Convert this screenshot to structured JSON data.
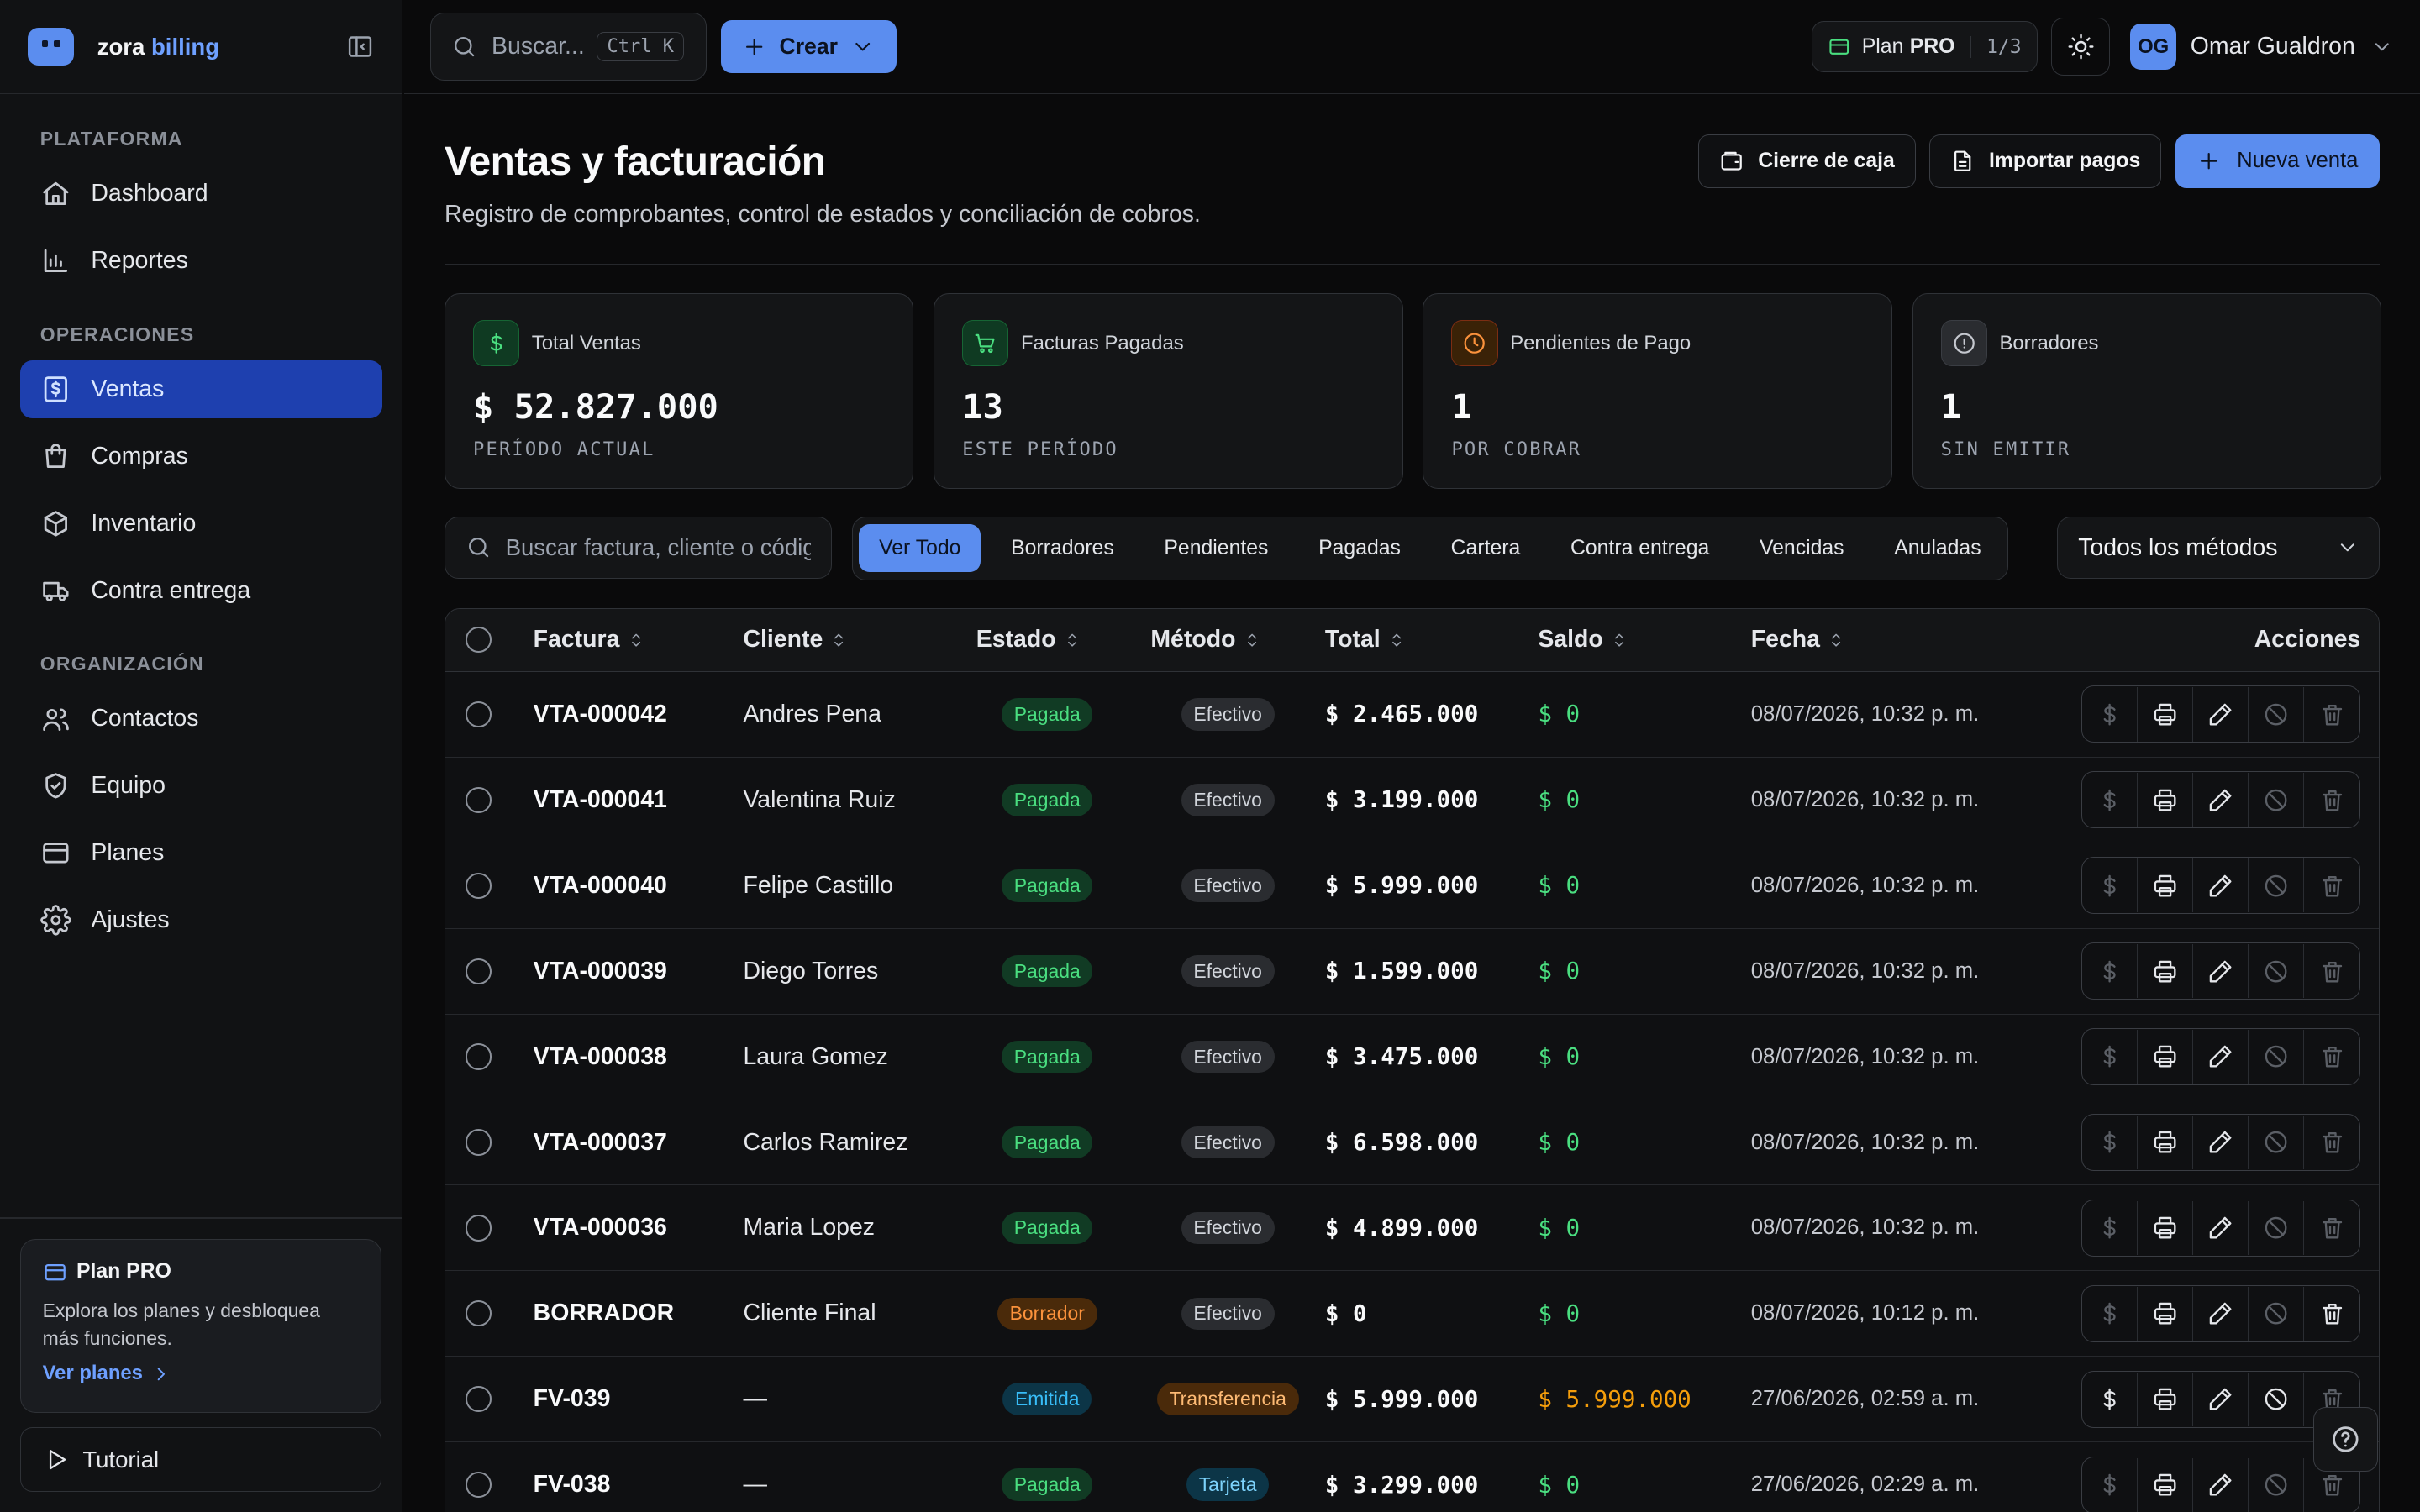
{
  "brand": {
    "name": "zora",
    "accent": "billing"
  },
  "nav": {
    "sections": [
      {
        "title": "PLATAFORMA",
        "items": [
          {
            "label": "Dashboard",
            "icon": "home-icon"
          },
          {
            "label": "Reportes",
            "icon": "bar-chart-icon"
          }
        ]
      },
      {
        "title": "OPERACIONES",
        "items": [
          {
            "label": "Ventas",
            "icon": "receipt-dollar-icon",
            "active": true
          },
          {
            "label": "Compras",
            "icon": "shopping-bag-icon"
          },
          {
            "label": "Inventario",
            "icon": "box-icon"
          },
          {
            "label": "Contra entrega",
            "icon": "truck-icon"
          }
        ]
      },
      {
        "title": "ORGANIZACIÓN",
        "items": [
          {
            "label": "Contactos",
            "icon": "users-icon"
          },
          {
            "label": "Equipo",
            "icon": "shield-icon"
          },
          {
            "label": "Planes",
            "icon": "credit-card-icon"
          },
          {
            "label": "Ajustes",
            "icon": "gear-icon"
          }
        ]
      }
    ]
  },
  "plan_card": {
    "title": "Plan PRO",
    "desc": "Explora los planes y desbloquea más funciones.",
    "link": "Ver planes"
  },
  "tutorial": "Tutorial",
  "topbar": {
    "search_placeholder": "Buscar...",
    "search_shortcut": "Ctrl K",
    "create_label": "Crear",
    "plan_label": "Plan",
    "plan_tier": "PRO",
    "plan_count": "1/3",
    "user_initials": "OG",
    "user_name": "Omar Gualdron"
  },
  "page": {
    "title": "Ventas y facturación",
    "subtitle": "Registro de comprobantes, control de estados y conciliación de cobros.",
    "actions": {
      "cash_close": "Cierre de caja",
      "import": "Importar pagos",
      "new_sale": "Nueva venta"
    }
  },
  "stats": [
    {
      "label": "Total Ventas",
      "value": "$ 52.827.000",
      "caption": "PERÍODO ACTUAL",
      "icon": "dollar-icon",
      "tone": "green"
    },
    {
      "label": "Facturas Pagadas",
      "value": "13",
      "caption": "ESTE PERÍODO",
      "icon": "cart-icon",
      "tone": "green"
    },
    {
      "label": "Pendientes de Pago",
      "value": "1",
      "caption": "POR COBRAR",
      "icon": "clock-icon",
      "tone": "orange"
    },
    {
      "label": "Borradores",
      "value": "1",
      "caption": "SIN EMITIR",
      "icon": "alert-circle-icon",
      "tone": "gray"
    }
  ],
  "filters": {
    "search_placeholder": "Buscar factura, cliente o código",
    "tabs": [
      "Ver Todo",
      "Borradores",
      "Pendientes",
      "Pagadas",
      "Cartera",
      "Contra entrega",
      "Vencidas",
      "Anuladas"
    ],
    "active_tab": "Ver Todo",
    "method_select": "Todos los métodos"
  },
  "table": {
    "columns": {
      "factura": "Factura",
      "cliente": "Cliente",
      "estado": "Estado",
      "metodo": "Método",
      "total": "Total",
      "saldo": "Saldo",
      "fecha": "Fecha",
      "acciones": "Acciones"
    },
    "rows": [
      {
        "factura": "VTA-000042",
        "cliente": "Andres Pena",
        "estado": "Pagada",
        "metodo": "Efectivo",
        "total": "$ 2.465.000",
        "saldo": "$ 0",
        "fecha": "08/07/2026, 10:32 p. m."
      },
      {
        "factura": "VTA-000041",
        "cliente": "Valentina Ruiz",
        "estado": "Pagada",
        "metodo": "Efectivo",
        "total": "$ 3.199.000",
        "saldo": "$ 0",
        "fecha": "08/07/2026, 10:32 p. m."
      },
      {
        "factura": "VTA-000040",
        "cliente": "Felipe Castillo",
        "estado": "Pagada",
        "metodo": "Efectivo",
        "total": "$ 5.999.000",
        "saldo": "$ 0",
        "fecha": "08/07/2026, 10:32 p. m."
      },
      {
        "factura": "VTA-000039",
        "cliente": "Diego Torres",
        "estado": "Pagada",
        "metodo": "Efectivo",
        "total": "$ 1.599.000",
        "saldo": "$ 0",
        "fecha": "08/07/2026, 10:32 p. m."
      },
      {
        "factura": "VTA-000038",
        "cliente": "Laura Gomez",
        "estado": "Pagada",
        "metodo": "Efectivo",
        "total": "$ 3.475.000",
        "saldo": "$ 0",
        "fecha": "08/07/2026, 10:32 p. m."
      },
      {
        "factura": "VTA-000037",
        "cliente": "Carlos Ramirez",
        "estado": "Pagada",
        "metodo": "Efectivo",
        "total": "$ 6.598.000",
        "saldo": "$ 0",
        "fecha": "08/07/2026, 10:32 p. m."
      },
      {
        "factura": "VTA-000036",
        "cliente": "Maria Lopez",
        "estado": "Pagada",
        "metodo": "Efectivo",
        "total": "$ 4.899.000",
        "saldo": "$ 0",
        "fecha": "08/07/2026, 10:32 p. m."
      },
      {
        "factura": "BORRADOR",
        "cliente": "Cliente Final",
        "estado": "Borrador",
        "metodo": "Efectivo",
        "total": "$ 0",
        "saldo": "$ 0",
        "fecha": "08/07/2026, 10:12 p. m."
      },
      {
        "factura": "FV-039",
        "cliente": "—",
        "estado": "Emitida",
        "metodo": "Transferencia",
        "total": "$ 5.999.000",
        "saldo": "$ 5.999.000",
        "fecha": "27/06/2026, 02:59 a. m."
      },
      {
        "factura": "FV-038",
        "cliente": "—",
        "estado": "Pagada",
        "metodo": "Tarjeta",
        "total": "$ 3.299.000",
        "saldo": "$ 0",
        "fecha": "27/06/2026, 02:29 a. m."
      }
    ]
  },
  "colors": {
    "accent": "#5b8def",
    "active_nav": "#1e40af",
    "pagada_bg": "#113b24",
    "pagada_fg": "#4ade80",
    "borrador_bg": "#4a2a0a",
    "borrador_fg": "#fb923c",
    "emitida_bg": "#0c3547",
    "emitida_fg": "#38bdf8",
    "efectivo_bg": "#2a2c30",
    "efectivo_fg": "#d1d5db",
    "transferencia_bg": "#4a2a0a",
    "transferencia_fg": "#fdba74",
    "tarjeta_bg": "#0c3547",
    "tarjeta_fg": "#7dd3fc",
    "saldo_zero": "#4ade80",
    "saldo_due": "#f59e0b"
  }
}
